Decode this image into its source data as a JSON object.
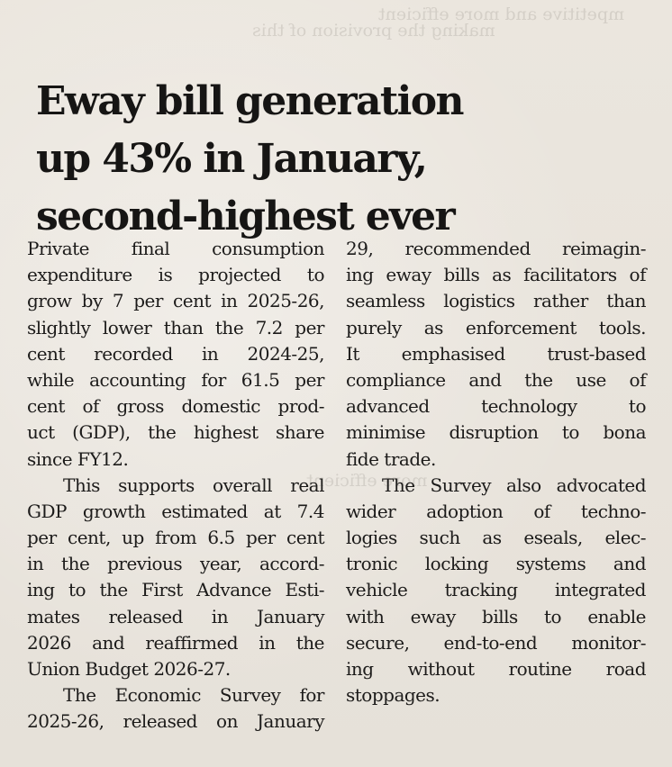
{
  "article": {
    "headline_lines": [
      "Eway bill generation",
      "up 43% in January,",
      "second-highest ever"
    ],
    "left_column": [
      "Private final consumption",
      "expenditure is projected to",
      "grow by 7 per cent in 2025-26,",
      "slightly lower than the 7.2 per",
      "cent recorded in 2024-25,",
      "while accounting for 61.5 per",
      "cent of gross domestic prod-",
      "uct (GDP), the highest share",
      "since FY12.",
      "This supports overall real",
      "GDP growth estimated at 7.4",
      "per cent, up from 6.5 per cent",
      "in the previous year, accord-",
      "ing to the First Advance Esti-",
      "mates released in January",
      "2026 and reaffirmed in the",
      "Union Budget 2026-27.",
      "The Economic Survey for",
      "2025-26, released on January"
    ],
    "right_column": [
      "29, recommended reimagin-",
      "ing eway bills as facilitators of",
      "seamless logistics rather than",
      "purely as enforcement tools.",
      "It emphasised trust-based",
      "compliance and the use of",
      "advanced technology to",
      "minimise disruption to bona",
      "fide trade.",
      "The Survey also advocated",
      "wider adoption of techno-",
      "logies such as eseals, elec-",
      "tronic locking systems and",
      "vehicle tracking integrated",
      "with eway bills to enable",
      "secure, end-to-end monitor-",
      "ing without routine road",
      "stoppages."
    ]
  }
}
